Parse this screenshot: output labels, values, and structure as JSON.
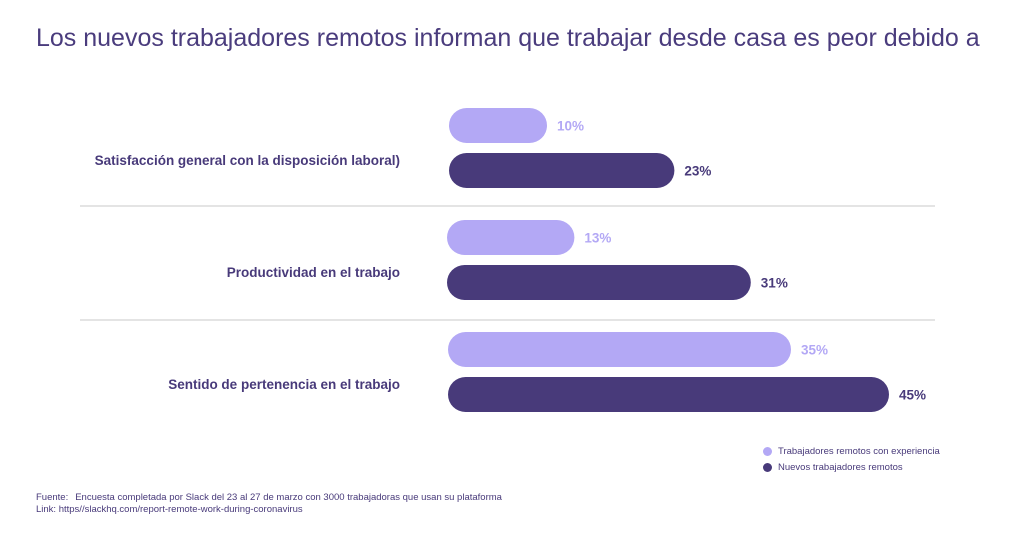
{
  "title": "Los nuevos trabajadores remotos informan que trabajar desde casa es peor debido a",
  "chart_data": {
    "type": "bar",
    "orientation": "horizontal",
    "categories": [
      "Satisfacción general con la disposición laboral)",
      "Productividad en el trabajo",
      "Sentido de pertenencia en el trabajo"
    ],
    "series": [
      {
        "name": "Trabajadores remotos con experiencia",
        "values": [
          10,
          13,
          35
        ],
        "value_labels": [
          "10%",
          "13%",
          "35%"
        ],
        "color": "#b3a8f5"
      },
      {
        "name": "Nuevos trabajadores remotos",
        "values": [
          23,
          31,
          45
        ],
        "value_labels": [
          "23%",
          "31%",
          "45%"
        ],
        "color": "#483a7a"
      }
    ],
    "xlim": [
      0,
      45
    ],
    "legend_position": "bottom-right",
    "grid": false
  },
  "legend": {
    "items": [
      {
        "label": "Trabajadores remotos con experiencia",
        "color": "#b3a8f5"
      },
      {
        "label": "Nuevos trabajadores remotos",
        "color": "#483a7a"
      }
    ]
  },
  "footer": {
    "source_label": "Fuente:",
    "source_text": "Encuesta completada por Slack del 23 al 27 de marzo con 3000 trabajadoras que usan su plataforma",
    "link_text": "Link: https//slackhq.com/report-remote-work-during-coronavirus"
  }
}
